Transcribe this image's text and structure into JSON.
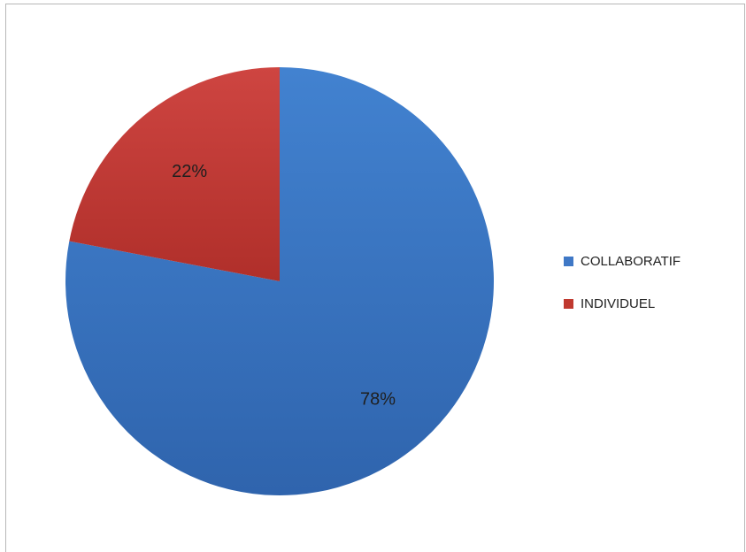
{
  "chart_data": {
    "type": "pie",
    "slices": [
      {
        "label": "COLLABORATIF",
        "value": 78,
        "display": "78%",
        "color": "#3f78c6"
      },
      {
        "label": "INDIVIDUEL",
        "value": 22,
        "display": "22%",
        "color": "#c0392f"
      }
    ],
    "legend_position": "right",
    "start_angle_deg": 0,
    "direction": "clockwise"
  }
}
